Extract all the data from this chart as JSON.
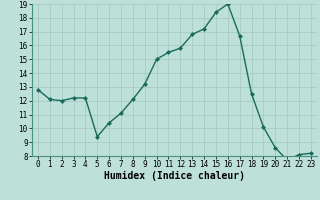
{
  "x": [
    0,
    1,
    2,
    3,
    4,
    5,
    6,
    7,
    8,
    9,
    10,
    11,
    12,
    13,
    14,
    15,
    16,
    17,
    18,
    19,
    20,
    21,
    22,
    23
  ],
  "y": [
    12.8,
    12.1,
    12.0,
    12.2,
    12.2,
    9.4,
    10.4,
    11.1,
    12.1,
    13.2,
    15.0,
    15.5,
    15.8,
    16.8,
    17.2,
    18.4,
    19.0,
    16.7,
    12.5,
    10.1,
    8.6,
    7.7,
    8.1,
    8.2
  ],
  "xlabel": "Humidex (Indice chaleur)",
  "ylim": [
    8,
    19
  ],
  "xlim": [
    -0.5,
    23.5
  ],
  "yticks": [
    8,
    9,
    10,
    11,
    12,
    13,
    14,
    15,
    16,
    17,
    18,
    19
  ],
  "xticks": [
    0,
    1,
    2,
    3,
    4,
    5,
    6,
    7,
    8,
    9,
    10,
    11,
    12,
    13,
    14,
    15,
    16,
    17,
    18,
    19,
    20,
    21,
    22,
    23
  ],
  "line_color": "#1a6b5a",
  "marker_color": "#1a6b5a",
  "bg_color": "#bde0d8",
  "grid_color": "#a8ccc4",
  "xlabel_fontsize": 7,
  "tick_fontsize": 5.5
}
